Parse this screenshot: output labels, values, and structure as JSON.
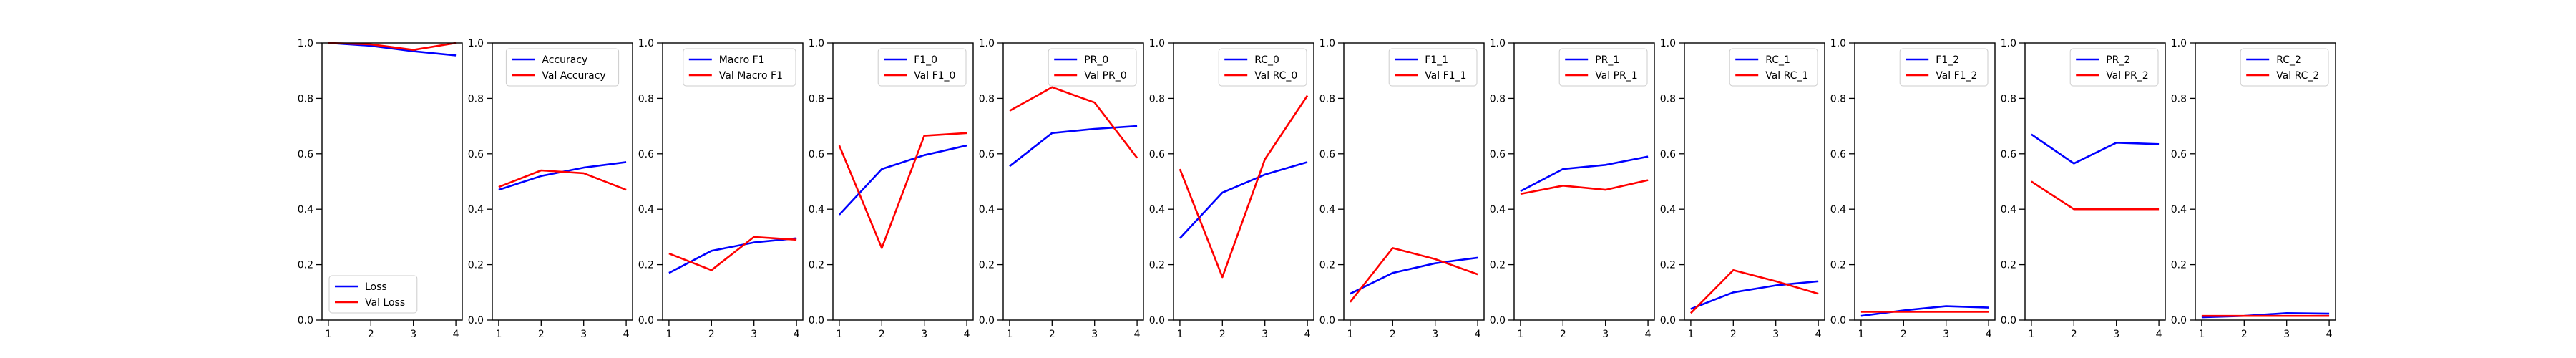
{
  "figure": {
    "x_ticks": [
      "1",
      "2",
      "3",
      "4"
    ],
    "y_ticks": [
      "0.0",
      "0.2",
      "0.4",
      "0.6",
      "0.8",
      "1.0"
    ],
    "colors": {
      "train": "#0000ff",
      "val": "#ff0000"
    }
  },
  "chart_data": [
    {
      "type": "line",
      "x": [
        1,
        2,
        3,
        4
      ],
      "xlim": [
        0.85,
        4.15
      ],
      "ylim": [
        0,
        1
      ],
      "legend_position": "lower-left",
      "series": [
        {
          "name": "Loss",
          "values": [
            1.0,
            0.99,
            0.97,
            0.955
          ]
        },
        {
          "name": "Val Loss",
          "values": [
            1.0,
            0.995,
            0.975,
            1.0
          ]
        }
      ]
    },
    {
      "type": "line",
      "x": [
        1,
        2,
        3,
        4
      ],
      "xlim": [
        0.85,
        4.15
      ],
      "ylim": [
        0,
        1
      ],
      "legend_position": "upper-center",
      "series": [
        {
          "name": "Accuracy",
          "values": [
            0.47,
            0.52,
            0.55,
            0.57
          ]
        },
        {
          "name": "Val Accuracy",
          "values": [
            0.48,
            0.54,
            0.53,
            0.47
          ]
        }
      ]
    },
    {
      "type": "line",
      "x": [
        1,
        2,
        3,
        4
      ],
      "xlim": [
        0.85,
        4.15
      ],
      "ylim": [
        0,
        1
      ],
      "legend_position": "upper-right",
      "series": [
        {
          "name": "Macro F1",
          "values": [
            0.17,
            0.25,
            0.28,
            0.295
          ]
        },
        {
          "name": "Val Macro F1",
          "values": [
            0.24,
            0.18,
            0.3,
            0.29
          ]
        }
      ]
    },
    {
      "type": "line",
      "x": [
        1,
        2,
        3,
        4
      ],
      "xlim": [
        0.85,
        4.15
      ],
      "ylim": [
        0,
        1
      ],
      "legend_position": "upper-right",
      "series": [
        {
          "name": "F1_0",
          "values": [
            0.38,
            0.545,
            0.595,
            0.63
          ]
        },
        {
          "name": "Val F1_0",
          "values": [
            0.63,
            0.26,
            0.665,
            0.675
          ]
        }
      ]
    },
    {
      "type": "line",
      "x": [
        1,
        2,
        3,
        4
      ],
      "xlim": [
        0.85,
        4.15
      ],
      "ylim": [
        0,
        1
      ],
      "legend_position": "upper-right",
      "series": [
        {
          "name": "PR_0",
          "values": [
            0.555,
            0.675,
            0.69,
            0.7
          ]
        },
        {
          "name": "Val PR_0",
          "values": [
            0.755,
            0.84,
            0.785,
            0.585
          ]
        }
      ]
    },
    {
      "type": "line",
      "x": [
        1,
        2,
        3,
        4
      ],
      "xlim": [
        0.85,
        4.15
      ],
      "ylim": [
        0,
        1
      ],
      "legend_position": "upper-right",
      "series": [
        {
          "name": "RC_0",
          "values": [
            0.295,
            0.46,
            0.525,
            0.57
          ]
        },
        {
          "name": "Val RC_0",
          "values": [
            0.545,
            0.155,
            0.58,
            0.81
          ]
        }
      ]
    },
    {
      "type": "line",
      "x": [
        1,
        2,
        3,
        4
      ],
      "xlim": [
        0.85,
        4.15
      ],
      "ylim": [
        0,
        1
      ],
      "legend_position": "upper-right",
      "series": [
        {
          "name": "F1_1",
          "values": [
            0.095,
            0.17,
            0.205,
            0.225
          ]
        },
        {
          "name": "Val F1_1",
          "values": [
            0.065,
            0.26,
            0.22,
            0.165
          ]
        }
      ]
    },
    {
      "type": "line",
      "x": [
        1,
        2,
        3,
        4
      ],
      "xlim": [
        0.85,
        4.15
      ],
      "ylim": [
        0,
        1
      ],
      "legend_position": "upper-right",
      "series": [
        {
          "name": "PR_1",
          "values": [
            0.465,
            0.545,
            0.56,
            0.59
          ]
        },
        {
          "name": "Val PR_1",
          "values": [
            0.455,
            0.485,
            0.47,
            0.505
          ]
        }
      ]
    },
    {
      "type": "line",
      "x": [
        1,
        2,
        3,
        4
      ],
      "xlim": [
        0.85,
        4.15
      ],
      "ylim": [
        0,
        1
      ],
      "legend_position": "upper-right",
      "series": [
        {
          "name": "RC_1",
          "values": [
            0.04,
            0.1,
            0.125,
            0.14
          ]
        },
        {
          "name": "Val RC_1",
          "values": [
            0.025,
            0.18,
            0.14,
            0.095
          ]
        }
      ]
    },
    {
      "type": "line",
      "x": [
        1,
        2,
        3,
        4
      ],
      "xlim": [
        0.85,
        4.15
      ],
      "ylim": [
        0,
        1
      ],
      "legend_position": "upper-right",
      "series": [
        {
          "name": "F1_2",
          "values": [
            0.015,
            0.035,
            0.05,
            0.045
          ]
        },
        {
          "name": "Val F1_2",
          "values": [
            0.03,
            0.03,
            0.03,
            0.03
          ]
        }
      ]
    },
    {
      "type": "line",
      "x": [
        1,
        2,
        3,
        4
      ],
      "xlim": [
        0.85,
        4.15
      ],
      "ylim": [
        0,
        1
      ],
      "legend_position": "upper-right",
      "series": [
        {
          "name": "PR_2",
          "values": [
            0.67,
            0.565,
            0.64,
            0.635
          ]
        },
        {
          "name": "Val PR_2",
          "values": [
            0.5,
            0.4,
            0.4,
            0.4
          ]
        }
      ]
    },
    {
      "type": "line",
      "x": [
        1,
        2,
        3,
        4
      ],
      "xlim": [
        0.85,
        4.15
      ],
      "ylim": [
        0,
        1
      ],
      "legend_position": "upper-right",
      "series": [
        {
          "name": "RC_2",
          "values": [
            0.01,
            0.015,
            0.025,
            0.023
          ]
        },
        {
          "name": "Val RC_2",
          "values": [
            0.015,
            0.015,
            0.015,
            0.015
          ]
        }
      ]
    }
  ]
}
